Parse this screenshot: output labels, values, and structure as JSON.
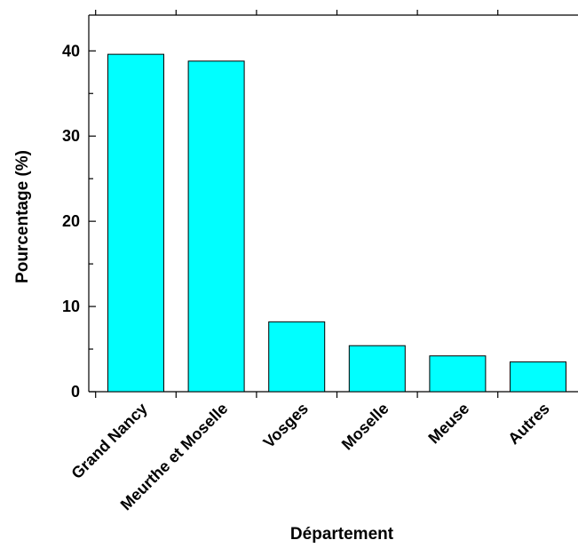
{
  "chart_data": {
    "type": "bar",
    "categories": [
      "Grand Nancy",
      "Meurthe et Moselle",
      "Vosges",
      "Moselle",
      "Meuse",
      "Autres"
    ],
    "values": [
      39.6,
      38.8,
      8.2,
      5.4,
      4.2,
      3.5
    ],
    "xlabel": "Département",
    "ylabel": "Pourcentage (%)",
    "ylim": [
      0,
      44.2
    ],
    "yticks": [
      0,
      10,
      20,
      30,
      40
    ],
    "bar_color": "#00ffff",
    "grid": false
  }
}
